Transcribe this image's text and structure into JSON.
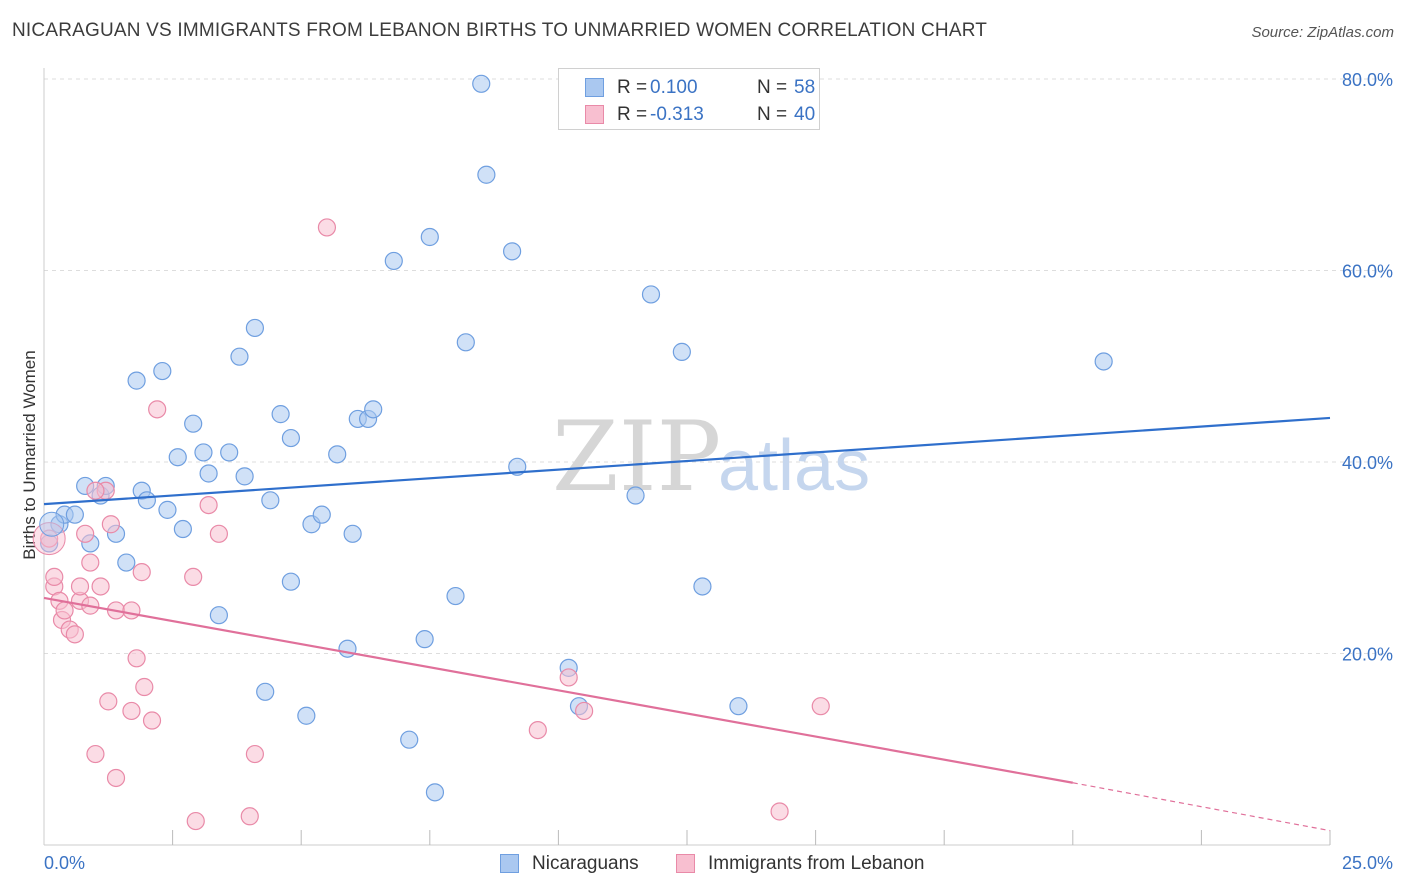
{
  "header": {
    "title": "NICARAGUAN VS IMMIGRANTS FROM LEBANON BIRTHS TO UNMARRIED WOMEN CORRELATION CHART",
    "source": "Source: ZipAtlas.com"
  },
  "legend": {
    "r_label": "R =",
    "n_label": "N =",
    "series": [
      {
        "name": "Nicaraguans",
        "r": "0.100",
        "n": "58",
        "fill": "#aac8f0",
        "stroke": "#6f9fe0"
      },
      {
        "name": "Immigrants from Lebanon",
        "r": "-0.313",
        "n": "40",
        "fill": "#f8bfd0",
        "stroke": "#e98aa8"
      }
    ]
  },
  "watermark": {
    "zip": "ZIP",
    "atlas": "atlas"
  },
  "colors": {
    "blue_line": "#2f6fcc",
    "pink_line": "#e0709a",
    "axis_text": "#3b73c4",
    "grid": "#dddddd"
  },
  "chart_data": {
    "type": "scatter",
    "title": "NICARAGUAN VS IMMIGRANTS FROM LEBANON BIRTHS TO UNMARRIED WOMEN CORRELATION CHART",
    "xlabel": "",
    "ylabel": "Births to Unmarried Women",
    "xlim": [
      0,
      25
    ],
    "ylim": [
      0,
      80
    ],
    "x_tick_labels": {
      "min": "0.0%",
      "max": "25.0%"
    },
    "y_ticks": [
      {
        "value": 20,
        "label": "20.0%"
      },
      {
        "value": 40,
        "label": "40.0%"
      },
      {
        "value": 60,
        "label": "60.0%"
      },
      {
        "value": 80,
        "label": "80.0%"
      }
    ],
    "series": [
      {
        "name": "Nicaraguans",
        "points": [
          [
            0.1,
            31.5
          ],
          [
            0.3,
            33.5
          ],
          [
            0.4,
            34.5
          ],
          [
            0.6,
            34.5
          ],
          [
            0.8,
            37.5
          ],
          [
            0.9,
            31.5
          ],
          [
            1.1,
            36.5
          ],
          [
            1.2,
            37.5
          ],
          [
            1.4,
            32.5
          ],
          [
            1.6,
            29.5
          ],
          [
            1.8,
            48.5
          ],
          [
            1.9,
            37
          ],
          [
            2.0,
            36
          ],
          [
            2.3,
            49.5
          ],
          [
            2.4,
            35
          ],
          [
            2.6,
            40.5
          ],
          [
            2.7,
            33
          ],
          [
            2.9,
            44
          ],
          [
            3.1,
            41
          ],
          [
            3.2,
            38.8
          ],
          [
            3.4,
            24
          ],
          [
            3.6,
            41
          ],
          [
            3.8,
            51
          ],
          [
            3.9,
            38.5
          ],
          [
            4.1,
            54
          ],
          [
            4.3,
            16
          ],
          [
            4.4,
            36
          ],
          [
            4.6,
            45
          ],
          [
            4.8,
            42.5
          ],
          [
            4.8,
            27.5
          ],
          [
            5.1,
            13.5
          ],
          [
            5.2,
            33.5
          ],
          [
            5.4,
            34.5
          ],
          [
            5.7,
            40.8
          ],
          [
            5.9,
            20.5
          ],
          [
            6.0,
            32.5
          ],
          [
            6.1,
            44.5
          ],
          [
            6.3,
            44.5
          ],
          [
            6.4,
            45.5
          ],
          [
            6.8,
            61
          ],
          [
            7.1,
            11
          ],
          [
            7.4,
            21.5
          ],
          [
            7.5,
            63.5
          ],
          [
            7.6,
            5.5
          ],
          [
            8.0,
            26
          ],
          [
            8.2,
            52.5
          ],
          [
            8.5,
            79.5
          ],
          [
            8.6,
            70
          ],
          [
            9.1,
            62
          ],
          [
            9.2,
            39.5
          ],
          [
            10.2,
            18.5
          ],
          [
            10.4,
            14.5
          ],
          [
            11.5,
            36.5
          ],
          [
            11.8,
            57.5
          ],
          [
            12.4,
            51.5
          ],
          [
            12.8,
            27
          ],
          [
            13.5,
            14.5
          ],
          [
            20.6,
            50.5
          ]
        ],
        "trend": {
          "x": [
            0,
            25
          ],
          "y": [
            35.6,
            44.6
          ]
        }
      },
      {
        "name": "Immigrants from Lebanon",
        "points": [
          [
            0.1,
            32
          ],
          [
            0.2,
            27
          ],
          [
            0.2,
            28
          ],
          [
            0.3,
            25.5
          ],
          [
            0.35,
            23.5
          ],
          [
            0.4,
            24.5
          ],
          [
            0.5,
            22.5
          ],
          [
            0.6,
            22
          ],
          [
            0.7,
            25.5
          ],
          [
            0.7,
            27
          ],
          [
            0.8,
            32.5
          ],
          [
            0.9,
            29.5
          ],
          [
            0.9,
            25
          ],
          [
            1.0,
            9.5
          ],
          [
            1.1,
            27
          ],
          [
            1.2,
            37
          ],
          [
            1.25,
            15
          ],
          [
            1.3,
            33.5
          ],
          [
            1.4,
            24.5
          ],
          [
            1.4,
            7
          ],
          [
            1.7,
            24.5
          ],
          [
            1.7,
            14
          ],
          [
            1.8,
            19.5
          ],
          [
            1.9,
            28.5
          ],
          [
            1.95,
            16.5
          ],
          [
            2.1,
            13
          ],
          [
            2.2,
            45.5
          ],
          [
            2.9,
            28
          ],
          [
            2.95,
            2.5
          ],
          [
            3.2,
            35.5
          ],
          [
            3.4,
            32.5
          ],
          [
            4.0,
            3
          ],
          [
            4.1,
            9.5
          ],
          [
            5.5,
            64.5
          ],
          [
            9.6,
            12
          ],
          [
            10.2,
            17.5
          ],
          [
            10.5,
            14
          ],
          [
            14.3,
            3.5
          ],
          [
            15.1,
            14.5
          ],
          [
            1.0,
            37
          ]
        ],
        "trend": {
          "x": [
            0,
            20
          ],
          "y": [
            25.8,
            6.5
          ]
        },
        "trend_dashed": {
          "x": [
            20,
            25
          ],
          "y": [
            6.5,
            1.5
          ]
        }
      }
    ]
  }
}
